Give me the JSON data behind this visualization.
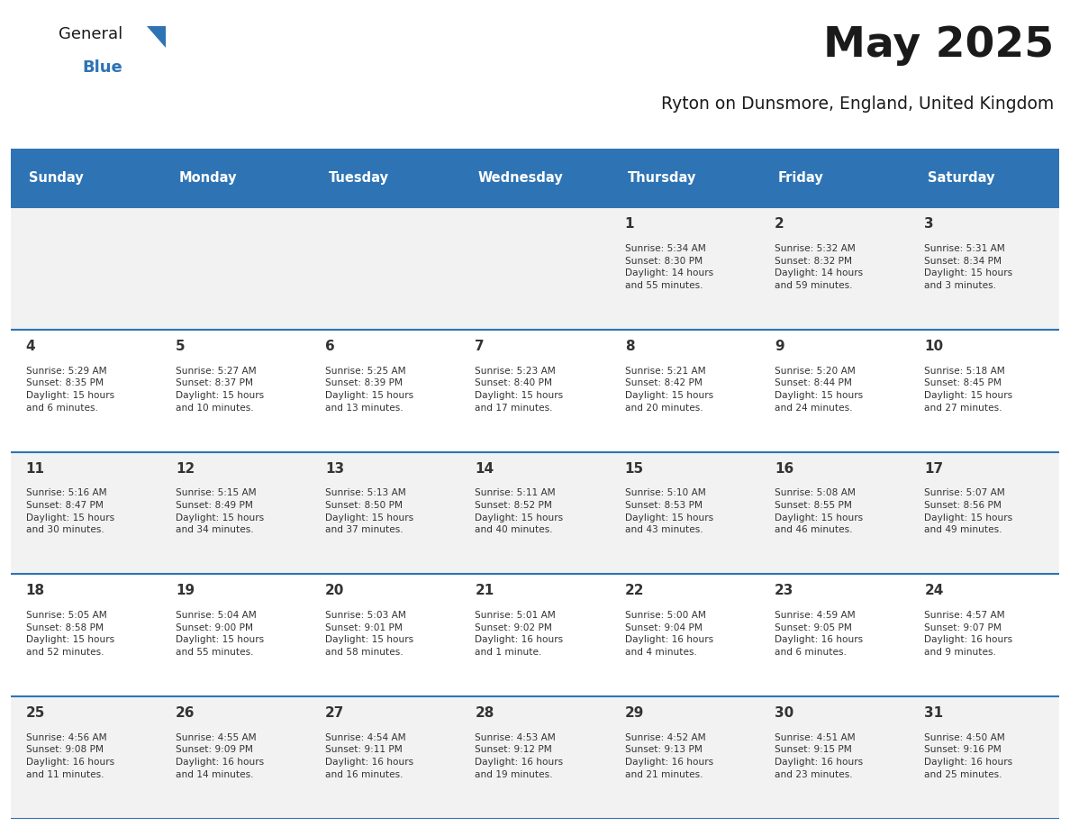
{
  "title": "May 2025",
  "subtitle": "Ryton on Dunsmore, England, United Kingdom",
  "header_bg": "#2E74B5",
  "header_text_color": "#FFFFFF",
  "cell_bg_light": "#F2F2F2",
  "cell_bg_white": "#FFFFFF",
  "border_color": "#2E74B5",
  "text_color": "#333333",
  "days_of_week": [
    "Sunday",
    "Monday",
    "Tuesday",
    "Wednesday",
    "Thursday",
    "Friday",
    "Saturday"
  ],
  "calendar": [
    [
      {
        "day": 0,
        "info": ""
      },
      {
        "day": 0,
        "info": ""
      },
      {
        "day": 0,
        "info": ""
      },
      {
        "day": 0,
        "info": ""
      },
      {
        "day": 1,
        "info": "Sunrise: 5:34 AM\nSunset: 8:30 PM\nDaylight: 14 hours\nand 55 minutes."
      },
      {
        "day": 2,
        "info": "Sunrise: 5:32 AM\nSunset: 8:32 PM\nDaylight: 14 hours\nand 59 minutes."
      },
      {
        "day": 3,
        "info": "Sunrise: 5:31 AM\nSunset: 8:34 PM\nDaylight: 15 hours\nand 3 minutes."
      }
    ],
    [
      {
        "day": 4,
        "info": "Sunrise: 5:29 AM\nSunset: 8:35 PM\nDaylight: 15 hours\nand 6 minutes."
      },
      {
        "day": 5,
        "info": "Sunrise: 5:27 AM\nSunset: 8:37 PM\nDaylight: 15 hours\nand 10 minutes."
      },
      {
        "day": 6,
        "info": "Sunrise: 5:25 AM\nSunset: 8:39 PM\nDaylight: 15 hours\nand 13 minutes."
      },
      {
        "day": 7,
        "info": "Sunrise: 5:23 AM\nSunset: 8:40 PM\nDaylight: 15 hours\nand 17 minutes."
      },
      {
        "day": 8,
        "info": "Sunrise: 5:21 AM\nSunset: 8:42 PM\nDaylight: 15 hours\nand 20 minutes."
      },
      {
        "day": 9,
        "info": "Sunrise: 5:20 AM\nSunset: 8:44 PM\nDaylight: 15 hours\nand 24 minutes."
      },
      {
        "day": 10,
        "info": "Sunrise: 5:18 AM\nSunset: 8:45 PM\nDaylight: 15 hours\nand 27 minutes."
      }
    ],
    [
      {
        "day": 11,
        "info": "Sunrise: 5:16 AM\nSunset: 8:47 PM\nDaylight: 15 hours\nand 30 minutes."
      },
      {
        "day": 12,
        "info": "Sunrise: 5:15 AM\nSunset: 8:49 PM\nDaylight: 15 hours\nand 34 minutes."
      },
      {
        "day": 13,
        "info": "Sunrise: 5:13 AM\nSunset: 8:50 PM\nDaylight: 15 hours\nand 37 minutes."
      },
      {
        "day": 14,
        "info": "Sunrise: 5:11 AM\nSunset: 8:52 PM\nDaylight: 15 hours\nand 40 minutes."
      },
      {
        "day": 15,
        "info": "Sunrise: 5:10 AM\nSunset: 8:53 PM\nDaylight: 15 hours\nand 43 minutes."
      },
      {
        "day": 16,
        "info": "Sunrise: 5:08 AM\nSunset: 8:55 PM\nDaylight: 15 hours\nand 46 minutes."
      },
      {
        "day": 17,
        "info": "Sunrise: 5:07 AM\nSunset: 8:56 PM\nDaylight: 15 hours\nand 49 minutes."
      }
    ],
    [
      {
        "day": 18,
        "info": "Sunrise: 5:05 AM\nSunset: 8:58 PM\nDaylight: 15 hours\nand 52 minutes."
      },
      {
        "day": 19,
        "info": "Sunrise: 5:04 AM\nSunset: 9:00 PM\nDaylight: 15 hours\nand 55 minutes."
      },
      {
        "day": 20,
        "info": "Sunrise: 5:03 AM\nSunset: 9:01 PM\nDaylight: 15 hours\nand 58 minutes."
      },
      {
        "day": 21,
        "info": "Sunrise: 5:01 AM\nSunset: 9:02 PM\nDaylight: 16 hours\nand 1 minute."
      },
      {
        "day": 22,
        "info": "Sunrise: 5:00 AM\nSunset: 9:04 PM\nDaylight: 16 hours\nand 4 minutes."
      },
      {
        "day": 23,
        "info": "Sunrise: 4:59 AM\nSunset: 9:05 PM\nDaylight: 16 hours\nand 6 minutes."
      },
      {
        "day": 24,
        "info": "Sunrise: 4:57 AM\nSunset: 9:07 PM\nDaylight: 16 hours\nand 9 minutes."
      }
    ],
    [
      {
        "day": 25,
        "info": "Sunrise: 4:56 AM\nSunset: 9:08 PM\nDaylight: 16 hours\nand 11 minutes."
      },
      {
        "day": 26,
        "info": "Sunrise: 4:55 AM\nSunset: 9:09 PM\nDaylight: 16 hours\nand 14 minutes."
      },
      {
        "day": 27,
        "info": "Sunrise: 4:54 AM\nSunset: 9:11 PM\nDaylight: 16 hours\nand 16 minutes."
      },
      {
        "day": 28,
        "info": "Sunrise: 4:53 AM\nSunset: 9:12 PM\nDaylight: 16 hours\nand 19 minutes."
      },
      {
        "day": 29,
        "info": "Sunrise: 4:52 AM\nSunset: 9:13 PM\nDaylight: 16 hours\nand 21 minutes."
      },
      {
        "day": 30,
        "info": "Sunrise: 4:51 AM\nSunset: 9:15 PM\nDaylight: 16 hours\nand 23 minutes."
      },
      {
        "day": 31,
        "info": "Sunrise: 4:50 AM\nSunset: 9:16 PM\nDaylight: 16 hours\nand 25 minutes."
      }
    ]
  ],
  "logo_general_color": "#1a1a1a",
  "logo_blue_color": "#2E74B5",
  "logo_triangle_color": "#2E74B5"
}
